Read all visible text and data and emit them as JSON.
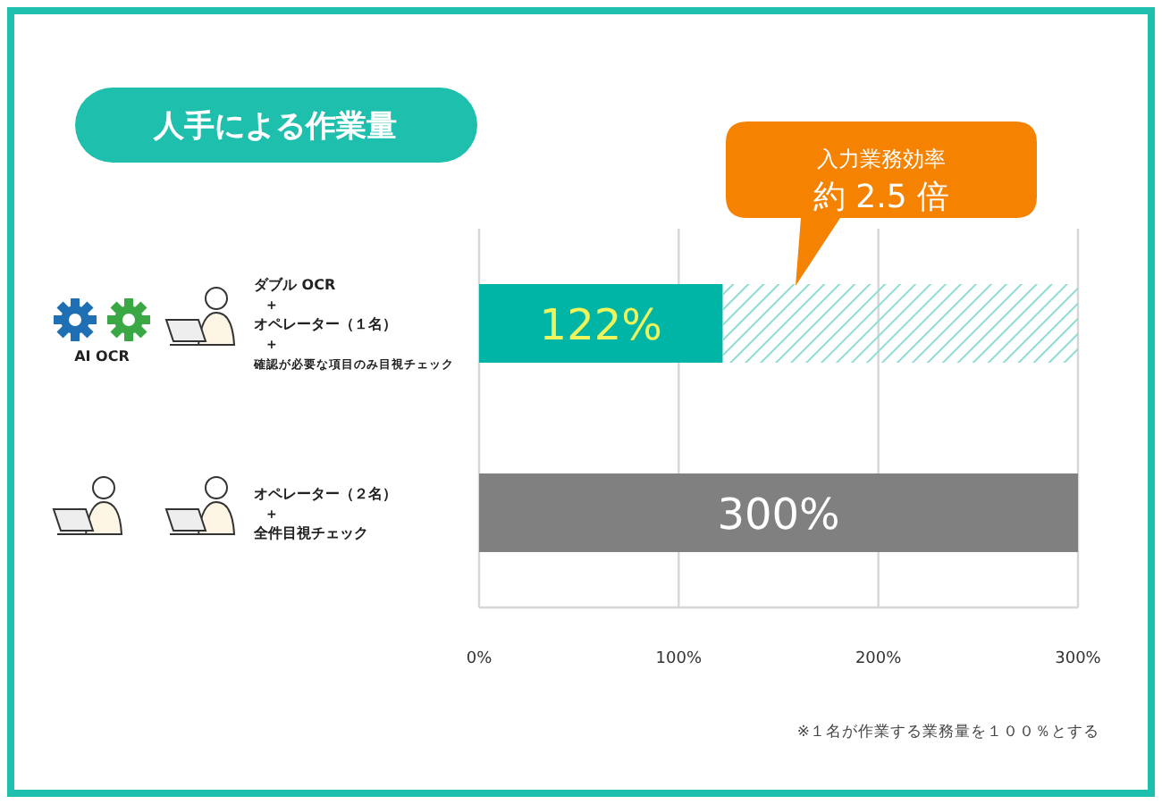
{
  "chart_data": {
    "type": "bar",
    "orientation": "horizontal",
    "stacked": true,
    "title": "人手による作業量",
    "categories": [
      "ダブル OCR\n+\nオペレーター（１名）\n+\n確認が必要な項目のみ目視チェック",
      "オペレーター（２名）\n+\n全件目視チェック"
    ],
    "series": [
      {
        "colors": [
          "#00b5a5",
          "#808080"
        ],
        "values": [
          122,
          300
        ],
        "value_labels": [
          "122%",
          "300%"
        ]
      },
      {
        "color": "#8fdcd3",
        "values": [
          178,
          null
        ]
      }
    ],
    "xlim": [
      0,
      300
    ],
    "xticks": [
      {
        "value": 0,
        "label": "0%"
      },
      {
        "value": 100,
        "label": "100%"
      },
      {
        "value": 200,
        "label": "200%"
      },
      {
        "value": 300,
        "label": "300%"
      }
    ],
    "grid": "x",
    "annotations": [
      "AI OCR",
      "入力業務効率",
      "約 2.5 倍",
      "※１名が作業する業務量を１００％とする"
    ]
  }
}
